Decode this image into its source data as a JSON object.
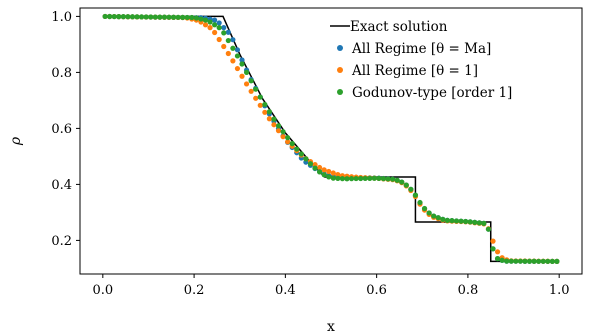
{
  "chart_data": {
    "type": "scatter",
    "title": "",
    "xlabel": "x",
    "ylabel": "ρ",
    "xlim": [
      -0.05,
      1.05
    ],
    "ylim": [
      0.08,
      1.03
    ],
    "xticks": [
      0.0,
      0.2,
      0.4,
      0.6,
      0.8,
      1.0
    ],
    "xtick_labels": [
      "0.0",
      "0.2",
      "0.4",
      "0.6",
      "0.8",
      "1.0"
    ],
    "yticks": [
      0.2,
      0.4,
      0.6,
      0.8,
      1.0
    ],
    "ytick_labels": [
      "0.2",
      "0.4",
      "0.6",
      "0.8",
      "1.0"
    ],
    "grid": false,
    "legend_position": "top-right",
    "exact": {
      "name": "Exact solution",
      "color": "#000000",
      "x": [
        0.0,
        0.2634,
        0.3,
        0.35,
        0.4,
        0.45,
        0.4859,
        0.685,
        0.685,
        0.85,
        0.85,
        1.0
      ],
      "y": [
        1.0,
        1.0,
        0.865,
        0.706,
        0.584,
        0.489,
        0.4263,
        0.4263,
        0.2656,
        0.2656,
        0.125,
        0.125
      ]
    },
    "series": [
      {
        "name": "All Regime [θ = Ma]",
        "color": "#1f77b4",
        "curve": {
          "x": [
            0.0,
            0.22,
            0.25,
            0.28,
            0.32,
            0.36,
            0.4,
            0.44,
            0.48,
            0.5,
            0.53,
            0.56,
            0.6,
            0.64,
            0.66,
            0.68,
            0.7,
            0.72,
            0.75,
            0.8,
            0.84,
            0.85,
            0.855,
            0.865,
            0.88,
            1.0
          ],
          "y": [
            1.0,
            0.995,
            0.985,
            0.935,
            0.79,
            0.665,
            0.56,
            0.485,
            0.44,
            0.428,
            0.424,
            0.424,
            0.423,
            0.418,
            0.405,
            0.375,
            0.32,
            0.29,
            0.272,
            0.267,
            0.26,
            0.22,
            0.17,
            0.135,
            0.126,
            0.125
          ]
        }
      },
      {
        "name": "All Regime [θ = 1]",
        "color": "#ff7f0e",
        "curve": {
          "x": [
            0.0,
            0.18,
            0.21,
            0.24,
            0.28,
            0.32,
            0.36,
            0.4,
            0.44,
            0.48,
            0.52,
            0.56,
            0.6,
            0.64,
            0.66,
            0.68,
            0.7,
            0.72,
            0.75,
            0.8,
            0.84,
            0.85,
            0.86,
            0.875,
            0.89,
            1.0
          ],
          "y": [
            1.0,
            0.996,
            0.985,
            0.955,
            0.855,
            0.745,
            0.645,
            0.56,
            0.497,
            0.455,
            0.432,
            0.425,
            0.422,
            0.416,
            0.403,
            0.37,
            0.316,
            0.285,
            0.27,
            0.266,
            0.258,
            0.225,
            0.17,
            0.138,
            0.127,
            0.125
          ]
        }
      },
      {
        "name": "Godunov-type [order 1]",
        "color": "#2ca02c",
        "curve": {
          "x": [
            0.0,
            0.2,
            0.23,
            0.26,
            0.3,
            0.34,
            0.38,
            0.42,
            0.46,
            0.48,
            0.5,
            0.53,
            0.56,
            0.6,
            0.64,
            0.66,
            0.68,
            0.7,
            0.72,
            0.75,
            0.8,
            0.84,
            0.85,
            0.855,
            0.865,
            0.88,
            1.0
          ],
          "y": [
            1.0,
            0.996,
            0.985,
            0.955,
            0.845,
            0.725,
            0.62,
            0.535,
            0.465,
            0.438,
            0.423,
            0.42,
            0.421,
            0.422,
            0.418,
            0.405,
            0.375,
            0.322,
            0.29,
            0.272,
            0.267,
            0.26,
            0.22,
            0.17,
            0.135,
            0.126,
            0.125
          ]
        }
      }
    ],
    "points_per_series": 100
  }
}
